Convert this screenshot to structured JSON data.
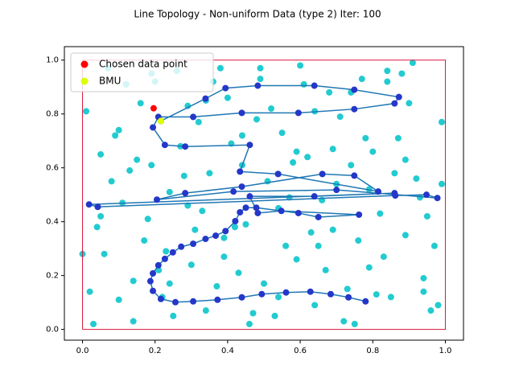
{
  "chart_data": {
    "type": "scatter",
    "title": "Line Topology - Non-uniform Data (type 2) Iter: 100",
    "xlim": [
      -0.05,
      1.05
    ],
    "ylim": [
      -0.04,
      1.05
    ],
    "xticks": [
      {
        "value": 0,
        "label": "0.0"
      },
      0.2,
      0.4,
      0.6,
      0.8,
      {
        "value": 1,
        "label": "1.0"
      }
    ],
    "yticks": [
      {
        "value": 0,
        "label": "0.0"
      },
      0.2,
      0.4,
      0.6,
      0.8,
      {
        "value": 1,
        "label": "1.0"
      }
    ],
    "legend": "upper left",
    "boundary": {
      "color": "#dc143c",
      "x": [
        0,
        1,
        1,
        0,
        0
      ],
      "y": [
        0,
        0,
        1,
        1,
        0
      ]
    },
    "series": [
      {
        "color": "#22cbd0",
        "x": [
          0.03,
          0.08,
          0.12,
          0.17,
          0.22,
          0.27,
          0.33,
          0.38,
          0.43,
          0.48,
          0.53,
          0.58,
          0.63,
          0.68,
          0.73,
          0.78,
          0.83,
          0.88,
          0.93,
          0.98,
          0.01,
          0.06,
          0.11,
          0.15,
          0.2,
          0.25,
          0.3,
          0.35,
          0.4,
          0.45,
          0.5,
          0.55,
          0.6,
          0.65,
          0.7,
          0.75,
          0.8,
          0.85,
          0.9,
          0.95,
          0.04,
          0.09,
          0.14,
          0.19,
          0.24,
          0.29,
          0.34,
          0.39,
          0.44,
          0.49,
          0.54,
          0.59,
          0.64,
          0.69,
          0.74,
          0.79,
          0.84,
          0.89,
          0.94,
          0.99,
          0.02,
          0.07,
          0.13,
          0.18,
          0.23,
          0.28,
          0.32,
          0.37,
          0.42,
          0.47,
          0.52,
          0.57,
          0.62,
          0.67,
          0.72,
          0.77,
          0.82,
          0.87,
          0.92,
          0.97,
          0.05,
          0.1,
          0.16,
          0.21,
          0.26,
          0.31,
          0.36,
          0.41,
          0.46,
          0.51,
          0.56,
          0.61,
          0.66,
          0.71,
          0.76,
          0.81,
          0.86,
          0.91,
          0.96,
          0.99,
          0.0,
          0.05,
          0.1,
          0.14,
          0.19,
          0.24,
          0.29,
          0.34,
          0.39,
          0.44,
          0.49,
          0.54,
          0.59,
          0.64,
          0.69,
          0.74,
          0.79,
          0.84,
          0.89,
          0.94
        ],
        "y": [
          0.02,
          0.55,
          0.91,
          0.33,
          0.12,
          0.68,
          0.44,
          0.97,
          0.21,
          0.78,
          0.05,
          0.62,
          0.36,
          0.88,
          0.15,
          0.71,
          0.27,
          0.95,
          0.49,
          0.09,
          0.81,
          0.28,
          0.47,
          0.63,
          0.92,
          0.05,
          0.24,
          0.58,
          0.86,
          0.39,
          0.17,
          0.73,
          0.98,
          0.31,
          0.54,
          0.02,
          0.66,
          0.12,
          0.84,
          0.42,
          0.38,
          0.72,
          0.18,
          0.95,
          0.51,
          0.83,
          0.07,
          0.34,
          0.61,
          0.93,
          0.45,
          0.26,
          0.09,
          0.67,
          0.88,
          0.52,
          0.96,
          0.35,
          0.19,
          0.77,
          0.14,
          0.97,
          0.59,
          0.41,
          0.29,
          0.57,
          0.77,
          0.16,
          0.38,
          0.06,
          0.82,
          0.49,
          0.64,
          0.22,
          0.03,
          0.93,
          0.43,
          0.71,
          0.56,
          0.31,
          0.65,
          0.11,
          0.84,
          0.22,
          0.96,
          0.37,
          0.92,
          0.69,
          0.02,
          0.55,
          0.31,
          0.91,
          0.48,
          0.79,
          0.33,
          0.13,
          0.58,
          0.99,
          0.07,
          0.54,
          0.28,
          0.42,
          0.74,
          0.03,
          0.61,
          0.17,
          0.46,
          0.85,
          0.27,
          0.72,
          0.97,
          0.12,
          0.66,
          0.81,
          0.37,
          0.61,
          0.23,
          0.92,
          0.63,
          0.14
        ]
      },
      {
        "color": "#2437c8",
        "line_color": "#1f77b4",
        "line": true,
        "x": [
          0.78,
          0.733,
          0.684,
          0.628,
          0.561,
          0.494,
          0.439,
          0.372,
          0.305,
          0.256,
          0.216,
          0.194,
          0.187,
          0.194,
          0.209,
          0.227,
          0.249,
          0.272,
          0.305,
          0.339,
          0.367,
          0.394,
          0.421,
          0.434,
          0.45,
          0.479,
          0.595,
          0.65,
          0.762,
          0.548,
          0.483,
          0.461,
          0.639,
          0.86,
          0.018,
          0.042,
          0.862,
          0.948,
          0.978,
          0.7,
          0.416,
          0.205,
          0.283,
          0.439,
          0.661,
          0.749,
          0.815,
          0.539,
          0.434,
          0.461,
          0.283,
          0.227,
          0.194,
          0.209,
          0.305,
          0.439,
          0.595,
          0.749,
          0.86,
          0.872,
          0.749,
          0.639,
          0.483,
          0.394,
          0.339,
          0.216
        ],
        "y": [
          0.104,
          0.119,
          0.131,
          0.14,
          0.137,
          0.131,
          0.119,
          0.11,
          0.104,
          0.101,
          0.113,
          0.143,
          0.179,
          0.208,
          0.238,
          0.262,
          0.286,
          0.307,
          0.318,
          0.336,
          0.348,
          0.365,
          0.402,
          0.435,
          0.452,
          0.452,
          0.432,
          0.417,
          0.426,
          0.44,
          0.432,
          0.494,
          0.494,
          0.506,
          0.464,
          0.455,
          0.497,
          0.5,
          0.488,
          0.518,
          0.512,
          0.482,
          0.506,
          0.53,
          0.577,
          0.571,
          0.512,
          0.577,
          0.586,
          0.685,
          0.679,
          0.685,
          0.75,
          0.789,
          0.789,
          0.804,
          0.804,
          0.818,
          0.839,
          0.863,
          0.89,
          0.905,
          0.905,
          0.896,
          0.857,
          0.774
        ]
      },
      {
        "name": "Chosen data point",
        "color": "#ff0000",
        "x": [
          0.196
        ],
        "y": [
          0.821
        ]
      },
      {
        "name": "BMU",
        "color": "#ddff00",
        "x": [
          0.216
        ],
        "y": [
          0.774
        ]
      }
    ]
  }
}
